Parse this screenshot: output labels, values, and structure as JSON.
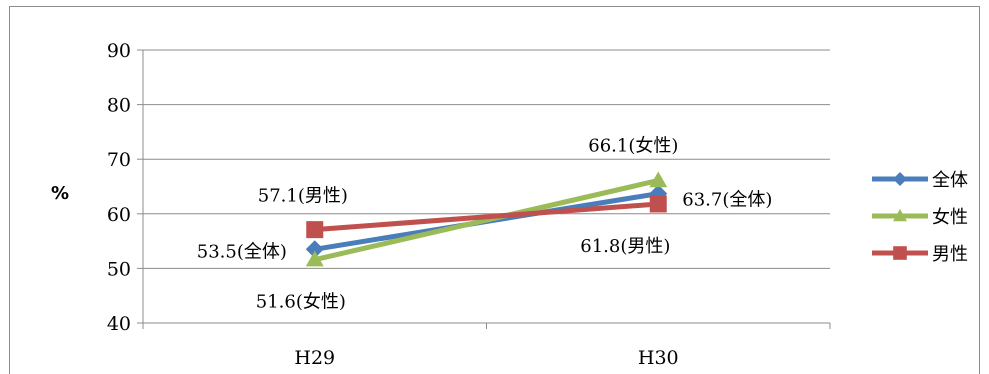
{
  "chart_data": {
    "type": "line",
    "categories": [
      "H29",
      "H30"
    ],
    "ylabel": "%",
    "ylim": [
      40,
      90
    ],
    "yticks": [
      "40",
      "50",
      "60",
      "70",
      "80",
      "90"
    ],
    "grid": true,
    "legend_position": "right",
    "series": [
      {
        "name": "全体",
        "values": [
          53.5,
          63.7
        ],
        "color": "#4a7ebb",
        "marker": "diamond",
        "labels": [
          "53.5(全体)",
          "63.7(全体)"
        ]
      },
      {
        "name": "女性",
        "values": [
          51.6,
          66.1
        ],
        "color": "#9bbb59",
        "marker": "triangle",
        "labels": [
          "51.6(女性)",
          "66.1(女性)"
        ]
      },
      {
        "name": "男性",
        "values": [
          57.1,
          61.8
        ],
        "color": "#c0504d",
        "marker": "square",
        "labels": [
          "57.1(男性)",
          "61.8(男性)"
        ]
      }
    ]
  }
}
